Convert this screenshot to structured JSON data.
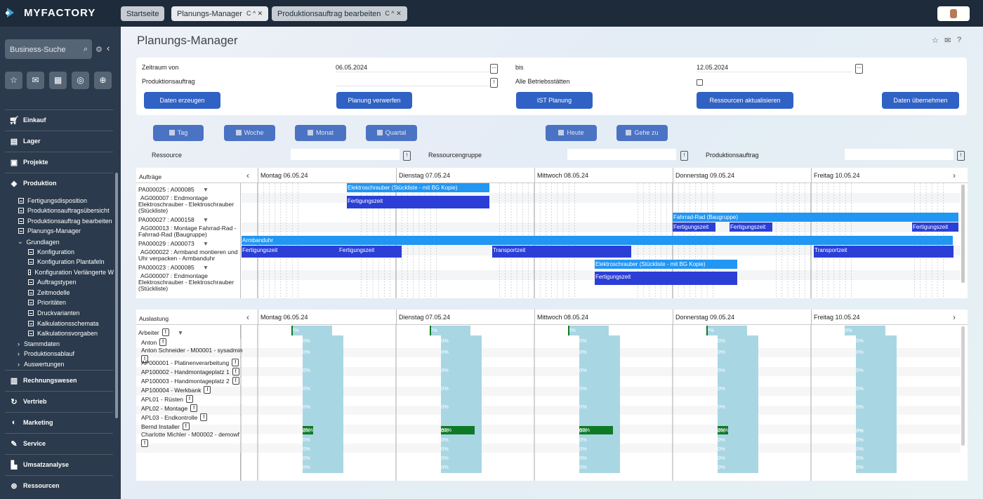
{
  "app": {
    "name": "MYFACTORY"
  },
  "tabs": [
    {
      "label": "Startseite"
    },
    {
      "label": "Planungs-Manager",
      "controls": "C ^ ✕"
    },
    {
      "label": "Produktionsauftrag bearbeiten",
      "controls": "C ^ ✕"
    }
  ],
  "sidebar": {
    "search_placeholder": "Business-Suche",
    "sections": [
      "Einkauf",
      "Lager",
      "Projekte",
      "Produktion",
      "Rechnungswesen",
      "Vertrieb",
      "Marketing",
      "Service",
      "Umsatzanalyse",
      "Ressourcen"
    ],
    "produktion_items": [
      "Fertigungsdisposition",
      "Produktionsauftragsübersicht",
      "Produktionsauftrag bearbeiten",
      "Planungs-Manager"
    ],
    "grundlagen_label": "Grundlagen",
    "grundlagen_items": [
      "Konfiguration",
      "Konfiguration Plantafeln",
      "Konfiguration Verlängerte W",
      "Auftragstypen",
      "Zeitmodelle",
      "Prioritäten",
      "Druckvarianten",
      "Kalkulationsschemata",
      "Kalkulationsvorgaben"
    ],
    "collapsed_items": [
      "Stammdaten",
      "Produktionsablauf",
      "Auswertungen"
    ]
  },
  "page": {
    "title": "Planungs-Manager"
  },
  "filter": {
    "zeitraum_von_label": "Zeitraum von",
    "zeitraum_von_value": "06.05.2024",
    "bis_label": "bis",
    "bis_value": "12.05.2024",
    "produktionsauftrag_label": "Produktionsauftrag",
    "alle_betriebsstaetten_label": "Alle Betriebsstätten",
    "buttons": [
      "Daten erzeugen",
      "Planung verwerfen",
      "IST Planung",
      "Ressourcen aktualisieren",
      "Daten übernehmen"
    ]
  },
  "view_buttons": [
    "Tag",
    "Woche",
    "Monat",
    "Quartal",
    "Heute",
    "Gehe zu"
  ],
  "row_filter": {
    "ressource": "Ressource",
    "ressourcengruppe": "Ressourcengruppe",
    "produktionsauftrag": "Produktionsauftrag"
  },
  "days": [
    "Montag 06.05.24",
    "Dienstag 07.05.24",
    "Mittwoch 08.05.24",
    "Donnerstag 09.05.24",
    "Freitag 10.05.24"
  ],
  "gantt": {
    "header": "Aufträge",
    "orders": [
      {
        "pa": "PA000025 : A000085",
        "ag": [
          "AG000007 : Endmontage",
          "Elektroschrauber - Elektroschrauber",
          "(Stückliste)"
        ]
      },
      {
        "pa": "PA000027 : A000158",
        "ag": [
          "AG000013 : Montage Fahrrad-Rad -",
          "Fahrrad-Rad (Baugruppe)"
        ]
      },
      {
        "pa": "PA000029 : A000073",
        "ag": [
          "AG000022 : Armband montieren und",
          "Uhr verpacken - Armbanduhr"
        ]
      },
      {
        "pa": "PA000023 : A000085",
        "ag": [
          "AG000007 : Endmontage",
          "Elektroschrauber - Elektroschrauber",
          "(Stückliste)"
        ]
      }
    ],
    "bar_labels": {
      "elektro1": "Elektroschrauber (Stückliste - mit BG Kopie)",
      "fert": "Fertigungszeit",
      "fahrrad": "Fahrrad-Rad (Baugruppe)",
      "armband": "Armbanduhr",
      "transport": "Transportzeit",
      "elektro2": "Elektroschrauber (Stückliste - mit BG Kopie)"
    }
  },
  "util": {
    "header": "Auslastung",
    "group": "Arbeiter",
    "rows": [
      "Anton",
      "Anton Schneider - M00001 - sysadmin",
      "AP000001 - Platinenverarbeitung",
      "AP100002 - Handmontageplatz 1",
      "AP100003 - Handmontageplatz 2",
      "AP100004 - Werkbank",
      "APL01 - Rüsten",
      "APL02 - Montage",
      "APL03 - Endkontrolle",
      "Bernd Installer",
      "Charlotte Michler - M00002 - demowf"
    ],
    "top_pct": [
      "2%",
      "2%",
      "2%",
      "2%",
      "0%"
    ],
    "zero": "0%",
    "werkbank_pct": [
      "25%",
      "82%",
      "82%",
      "25%",
      "0%"
    ],
    "werkbank_frac": [
      0.25,
      0.82,
      0.82,
      0.25,
      0
    ]
  }
}
